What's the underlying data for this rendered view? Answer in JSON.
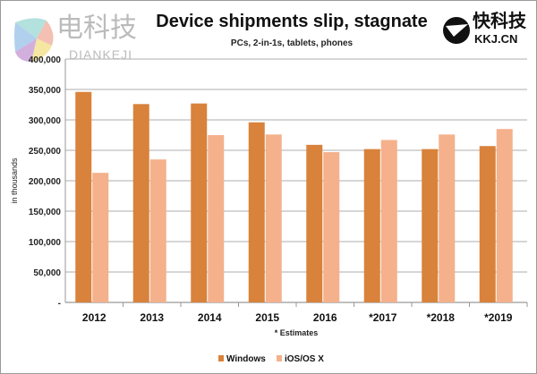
{
  "watermarks": {
    "left_cn": "电科技",
    "left_en": "DIANKEJI",
    "right_cn": "快科技",
    "right_en": "KKJ.CN"
  },
  "chart_data": {
    "type": "bar",
    "title": "Device shipments slip, stagnate",
    "subtitle": "PCs, 2-in-1s, tablets, phones",
    "xlabel": "* Estimates",
    "ylabel": "in thousands",
    "categories": [
      "2012",
      "2013",
      "2014",
      "2015",
      "2016",
      "*2017",
      "*2018",
      "*2019"
    ],
    "series": [
      {
        "name": "Windows",
        "color": "#d9823b",
        "values": [
          346000,
          326000,
          327000,
          296000,
          259000,
          252000,
          252000,
          257000
        ]
      },
      {
        "name": "iOS/OS X",
        "color": "#f4b18c",
        "values": [
          213000,
          235000,
          275000,
          276000,
          247000,
          267000,
          276000,
          285000
        ]
      }
    ],
    "ylim": [
      0,
      400000
    ],
    "yticks": [
      0,
      50000,
      100000,
      150000,
      200000,
      250000,
      300000,
      350000,
      400000
    ],
    "ytick_labels": [
      "-",
      "50,000",
      "100,000",
      "150,000",
      "200,000",
      "250,000",
      "300,000",
      "350,000",
      "400,000"
    ],
    "grid": true,
    "legend": "bottom"
  }
}
